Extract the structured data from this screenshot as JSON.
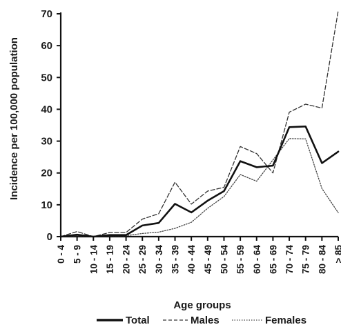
{
  "chart_data": {
    "type": "line",
    "xlabel": "Age groups",
    "ylabel": "Incidence per 100,000 population",
    "ylim": [
      0,
      70
    ],
    "yticks": [
      0,
      10,
      20,
      30,
      40,
      50,
      60,
      70
    ],
    "grid": false,
    "legend_position": "bottom",
    "categories": [
      "0 - 4",
      "5 - 9",
      "10 - 14",
      "15 - 19",
      "20 - 24",
      "25 - 29",
      "30 - 34",
      "35 - 39",
      "40 - 44",
      "45 - 49",
      "50 - 54",
      "55 - 59",
      "60 - 64",
      "65 - 69",
      "70 - 74",
      "75 - 79",
      "80 - 84",
      "> 85"
    ],
    "series": [
      {
        "name": "Total",
        "style": "solid",
        "color": "#111111",
        "values": [
          0,
          0.6,
          0,
          0.5,
          0.5,
          3.5,
          4.3,
          10.3,
          7.6,
          11.3,
          14.3,
          23.7,
          21.8,
          22.3,
          34.4,
          34.6,
          23.1,
          26.7
        ]
      },
      {
        "name": "Males",
        "style": "dashed",
        "color": "#333333",
        "values": [
          0,
          1.6,
          0,
          1.3,
          1.3,
          5.5,
          7.2,
          17.1,
          10.2,
          14.3,
          15.5,
          28.3,
          26.1,
          20.0,
          39.1,
          41.6,
          40.4,
          71.0
        ]
      },
      {
        "name": "Females",
        "style": "dotted",
        "color": "#444444",
        "values": [
          0,
          0.3,
          0,
          0.3,
          0.3,
          1.0,
          1.4,
          2.6,
          4.5,
          8.9,
          12.6,
          19.5,
          17.4,
          24.1,
          30.8,
          30.7,
          15.1,
          7.5
        ]
      }
    ]
  }
}
